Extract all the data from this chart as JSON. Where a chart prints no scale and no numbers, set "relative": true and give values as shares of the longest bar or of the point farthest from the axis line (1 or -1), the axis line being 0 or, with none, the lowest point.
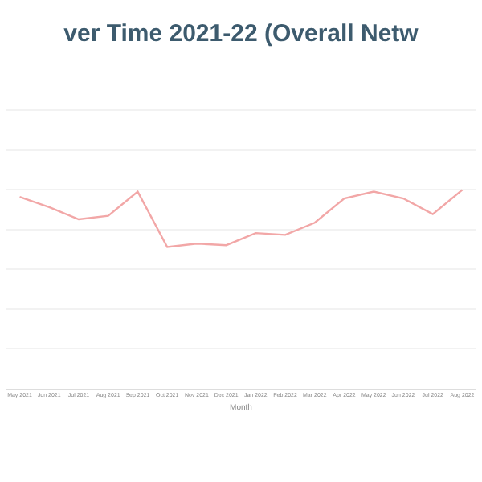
{
  "chart_data": {
    "type": "line",
    "title": "ver Time 2021-22 (Overall Netw",
    "xlabel": "Month",
    "relative": true,
    "grid": "y",
    "marker": "none",
    "line_style": "solid",
    "categories": [
      "May 2021",
      "Jun 2021",
      "Jul 2021",
      "Aug 2021",
      "Sep 2021",
      "Oct 2021",
      "Nov 2021",
      "Dec 2021",
      "Jan 2022",
      "Feb 2022",
      "Mar 2022",
      "Apr 2022",
      "May 2022",
      "Jun 2022",
      "Jul 2022",
      "Aug 2022"
    ],
    "series": [
      {
        "color": "#f2a7a7",
        "values": [
          0.965,
          0.913,
          0.852,
          0.87,
          0.991,
          0.713,
          0.73,
          0.722,
          0.783,
          0.774,
          0.835,
          0.957,
          0.991,
          0.957,
          0.878,
          1
        ]
      }
    ]
  }
}
